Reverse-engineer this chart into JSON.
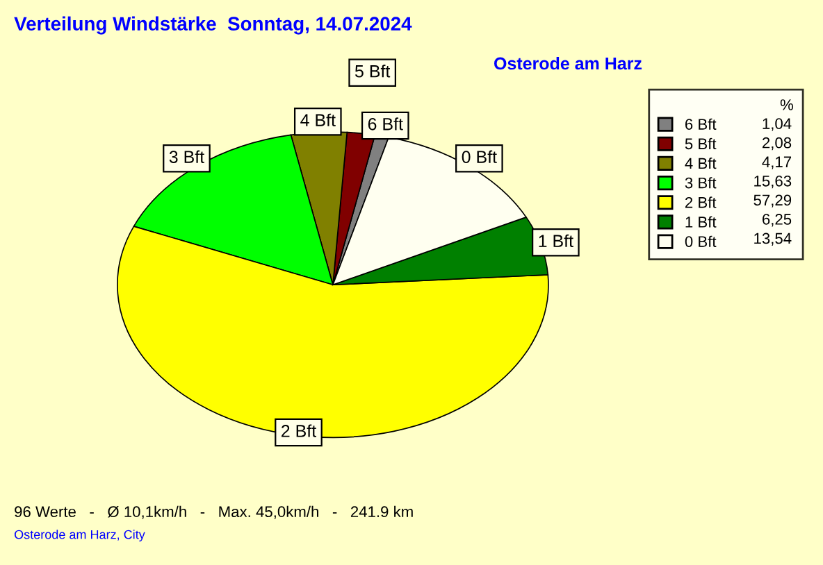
{
  "chart_data": {
    "type": "pie",
    "title": "Verteilung Windstärke  Sonntag, 14.07.2024",
    "subtitle": "Osterode am Harz",
    "categories": [
      "6 Bft",
      "5 Bft",
      "4 Bft",
      "3 Bft",
      "2 Bft",
      "1 Bft",
      "0 Bft"
    ],
    "values": [
      1.04,
      2.08,
      4.17,
      15.63,
      57.29,
      6.25,
      13.54
    ],
    "value_labels": [
      "1,04",
      "2,08",
      "4,17",
      "15,63",
      "57,29",
      "6,25",
      "13,54"
    ],
    "colors": [
      "#808080",
      "#800000",
      "#808000",
      "#00ff00",
      "#ffff00",
      "#008000",
      "#fffff0"
    ],
    "legend": "right",
    "legend_title": "%",
    "annotations": [
      "96 Werte   -   Ø 10,1km/h   -   Max. 45,0km/h   -   241.9 km",
      "Osterode am Harz, City"
    ]
  }
}
